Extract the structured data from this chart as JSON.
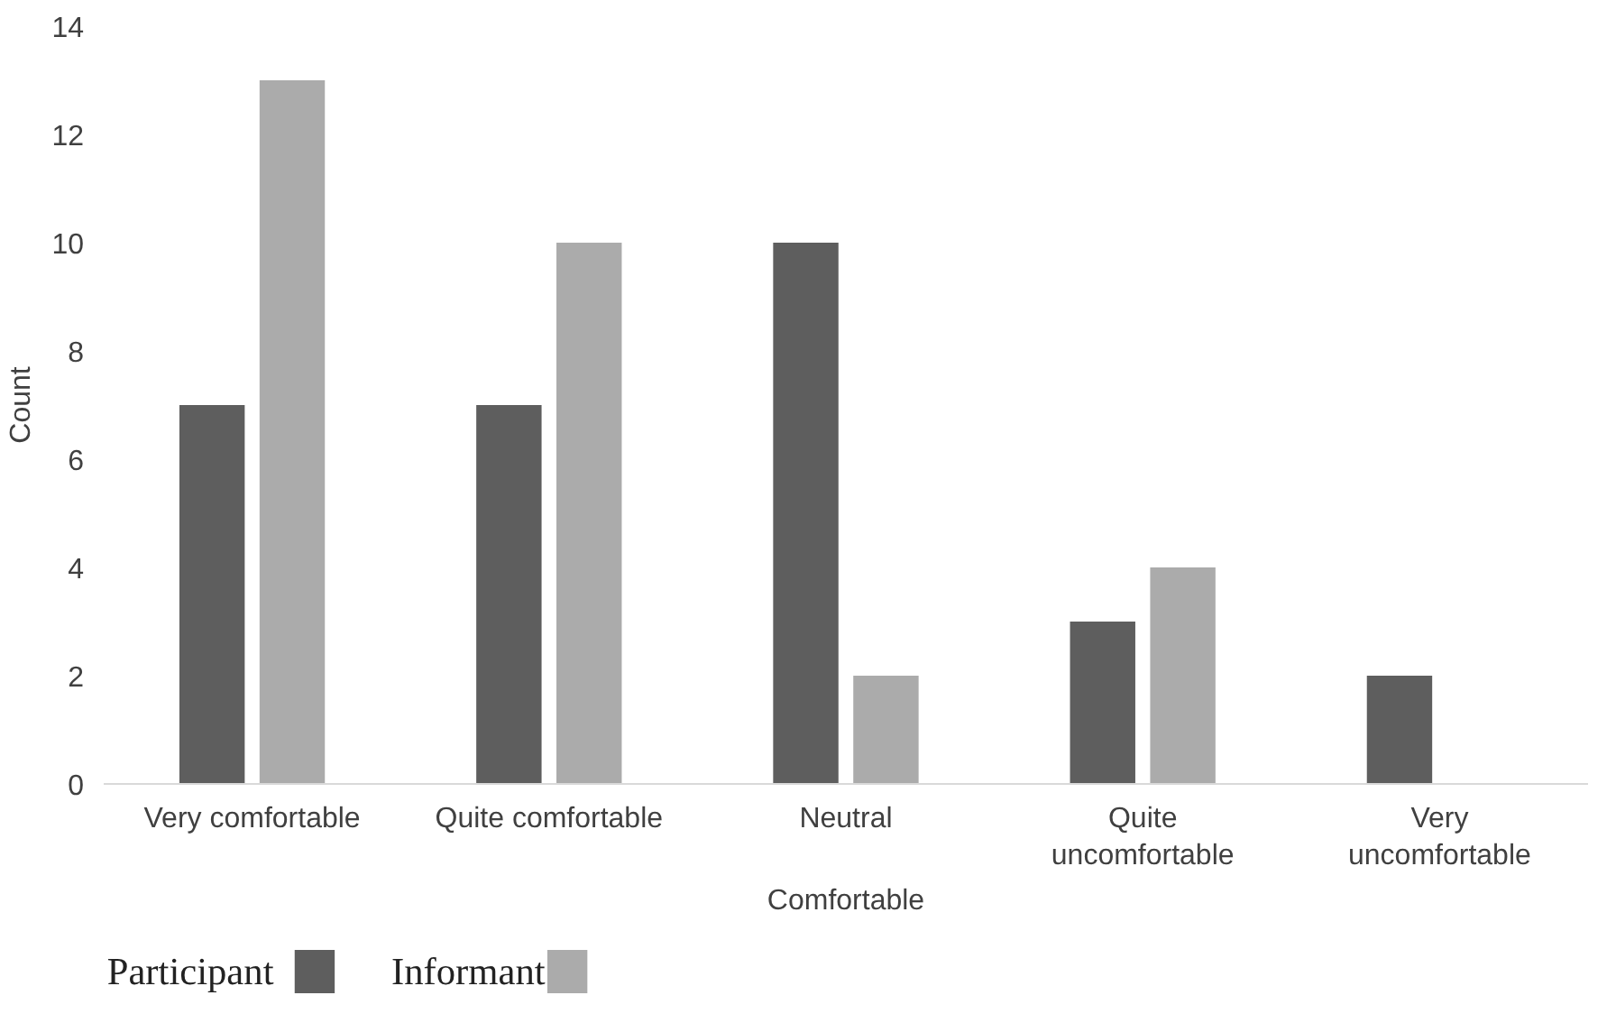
{
  "chart_data": {
    "type": "bar",
    "xlabel": "Comfortable",
    "ylabel": "Count",
    "categories": [
      "Very comfortable",
      "Quite comfortable",
      "Neutral",
      "Quite uncomfortable",
      "Very uncomfortable"
    ],
    "series": [
      {
        "name": "Participant",
        "color": "#5e5e5e",
        "values": [
          7,
          7,
          10,
          3,
          2
        ]
      },
      {
        "name": "Informant",
        "color": "#ababab",
        "values": [
          13,
          10,
          2,
          4,
          0
        ]
      }
    ],
    "ylim": [
      0,
      14
    ],
    "yticks": [
      0,
      2,
      4,
      6,
      8,
      10,
      12,
      14
    ],
    "grid": false,
    "legend": "bottom left"
  }
}
